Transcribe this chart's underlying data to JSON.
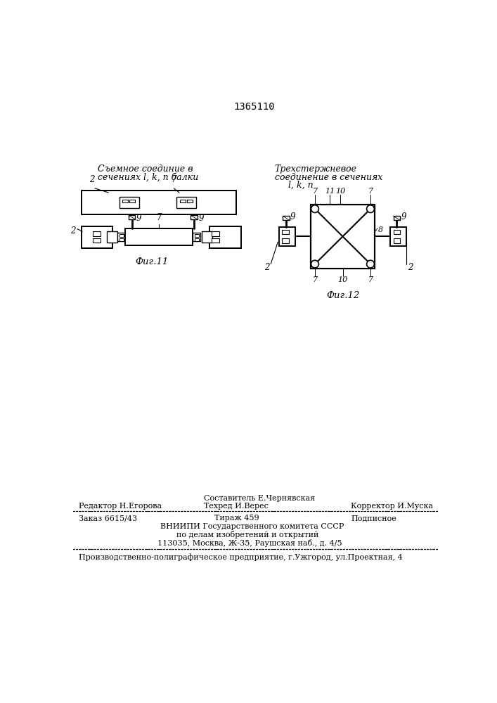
{
  "patent_number": "1365110",
  "bg_color": "#ffffff",
  "fig_width": 7.07,
  "fig_height": 10.0,
  "caption11_line1": "Съемное соединие в",
  "caption11_line2": "сечениях l, k, п балки",
  "caption12_line1": "Трехстержневое",
  "caption12_line2": "соединение в сечениях",
  "caption12_line3": "l, k, п",
  "fig11_label": "Фиг.11",
  "fig12_label": "Фиг.12",
  "footer_editor": "Редактор Н.Егорова",
  "footer_comp": "Составитель Е.Чернявская",
  "footer_tech": "Техред И.Верес",
  "footer_corr": "Корректор И.Муска",
  "footer_order": "Заказ 6615/43",
  "footer_circ": "Тираж 459",
  "footer_sub": "Подписное",
  "footer_vni": "ВНИИПИ Государственного комитета СССР",
  "footer_dep": "по делам изобретений и открытий",
  "footer_addr": "113035, Москва, Ж-35, Раушская наб., д. 4/5",
  "footer_prod": "Производственно-полиграфическое предприятие, г.Ужгород, ул.Проектная, 4"
}
